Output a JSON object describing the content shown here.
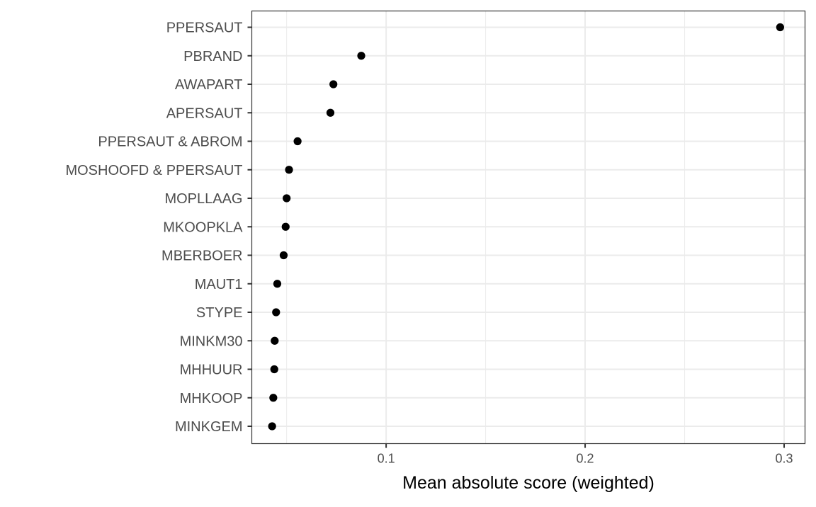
{
  "chart_data": {
    "type": "scatter",
    "xlabel": "Mean absolute score (weighted)",
    "ylabel": "",
    "xlim": [
      0.0325,
      0.3105
    ],
    "x_ticks": [
      {
        "value": 0.1,
        "label": "0.1"
      },
      {
        "value": 0.2,
        "label": "0.2"
      },
      {
        "value": 0.3,
        "label": "0.3"
      }
    ],
    "grid": true,
    "legend": "none",
    "point_color": "#000000",
    "categories": [
      "PPERSAUT",
      "PBRAND",
      "AWAPART",
      "APERSAUT",
      "PPERSAUT & ABROM",
      "MOSHOOFD & PPERSAUT",
      "MOPLLAAG",
      "MKOOPKLA",
      "MBERBOER",
      "MAUT1",
      "STYPE",
      "MINKM30",
      "MHHUUR",
      "MHKOOP",
      "MINKGEM"
    ],
    "values": [
      0.298,
      0.0875,
      0.0735,
      0.072,
      0.0555,
      0.0512,
      0.05,
      0.0495,
      0.0485,
      0.0453,
      0.0447,
      0.044,
      0.0438,
      0.0433,
      0.0427
    ]
  }
}
